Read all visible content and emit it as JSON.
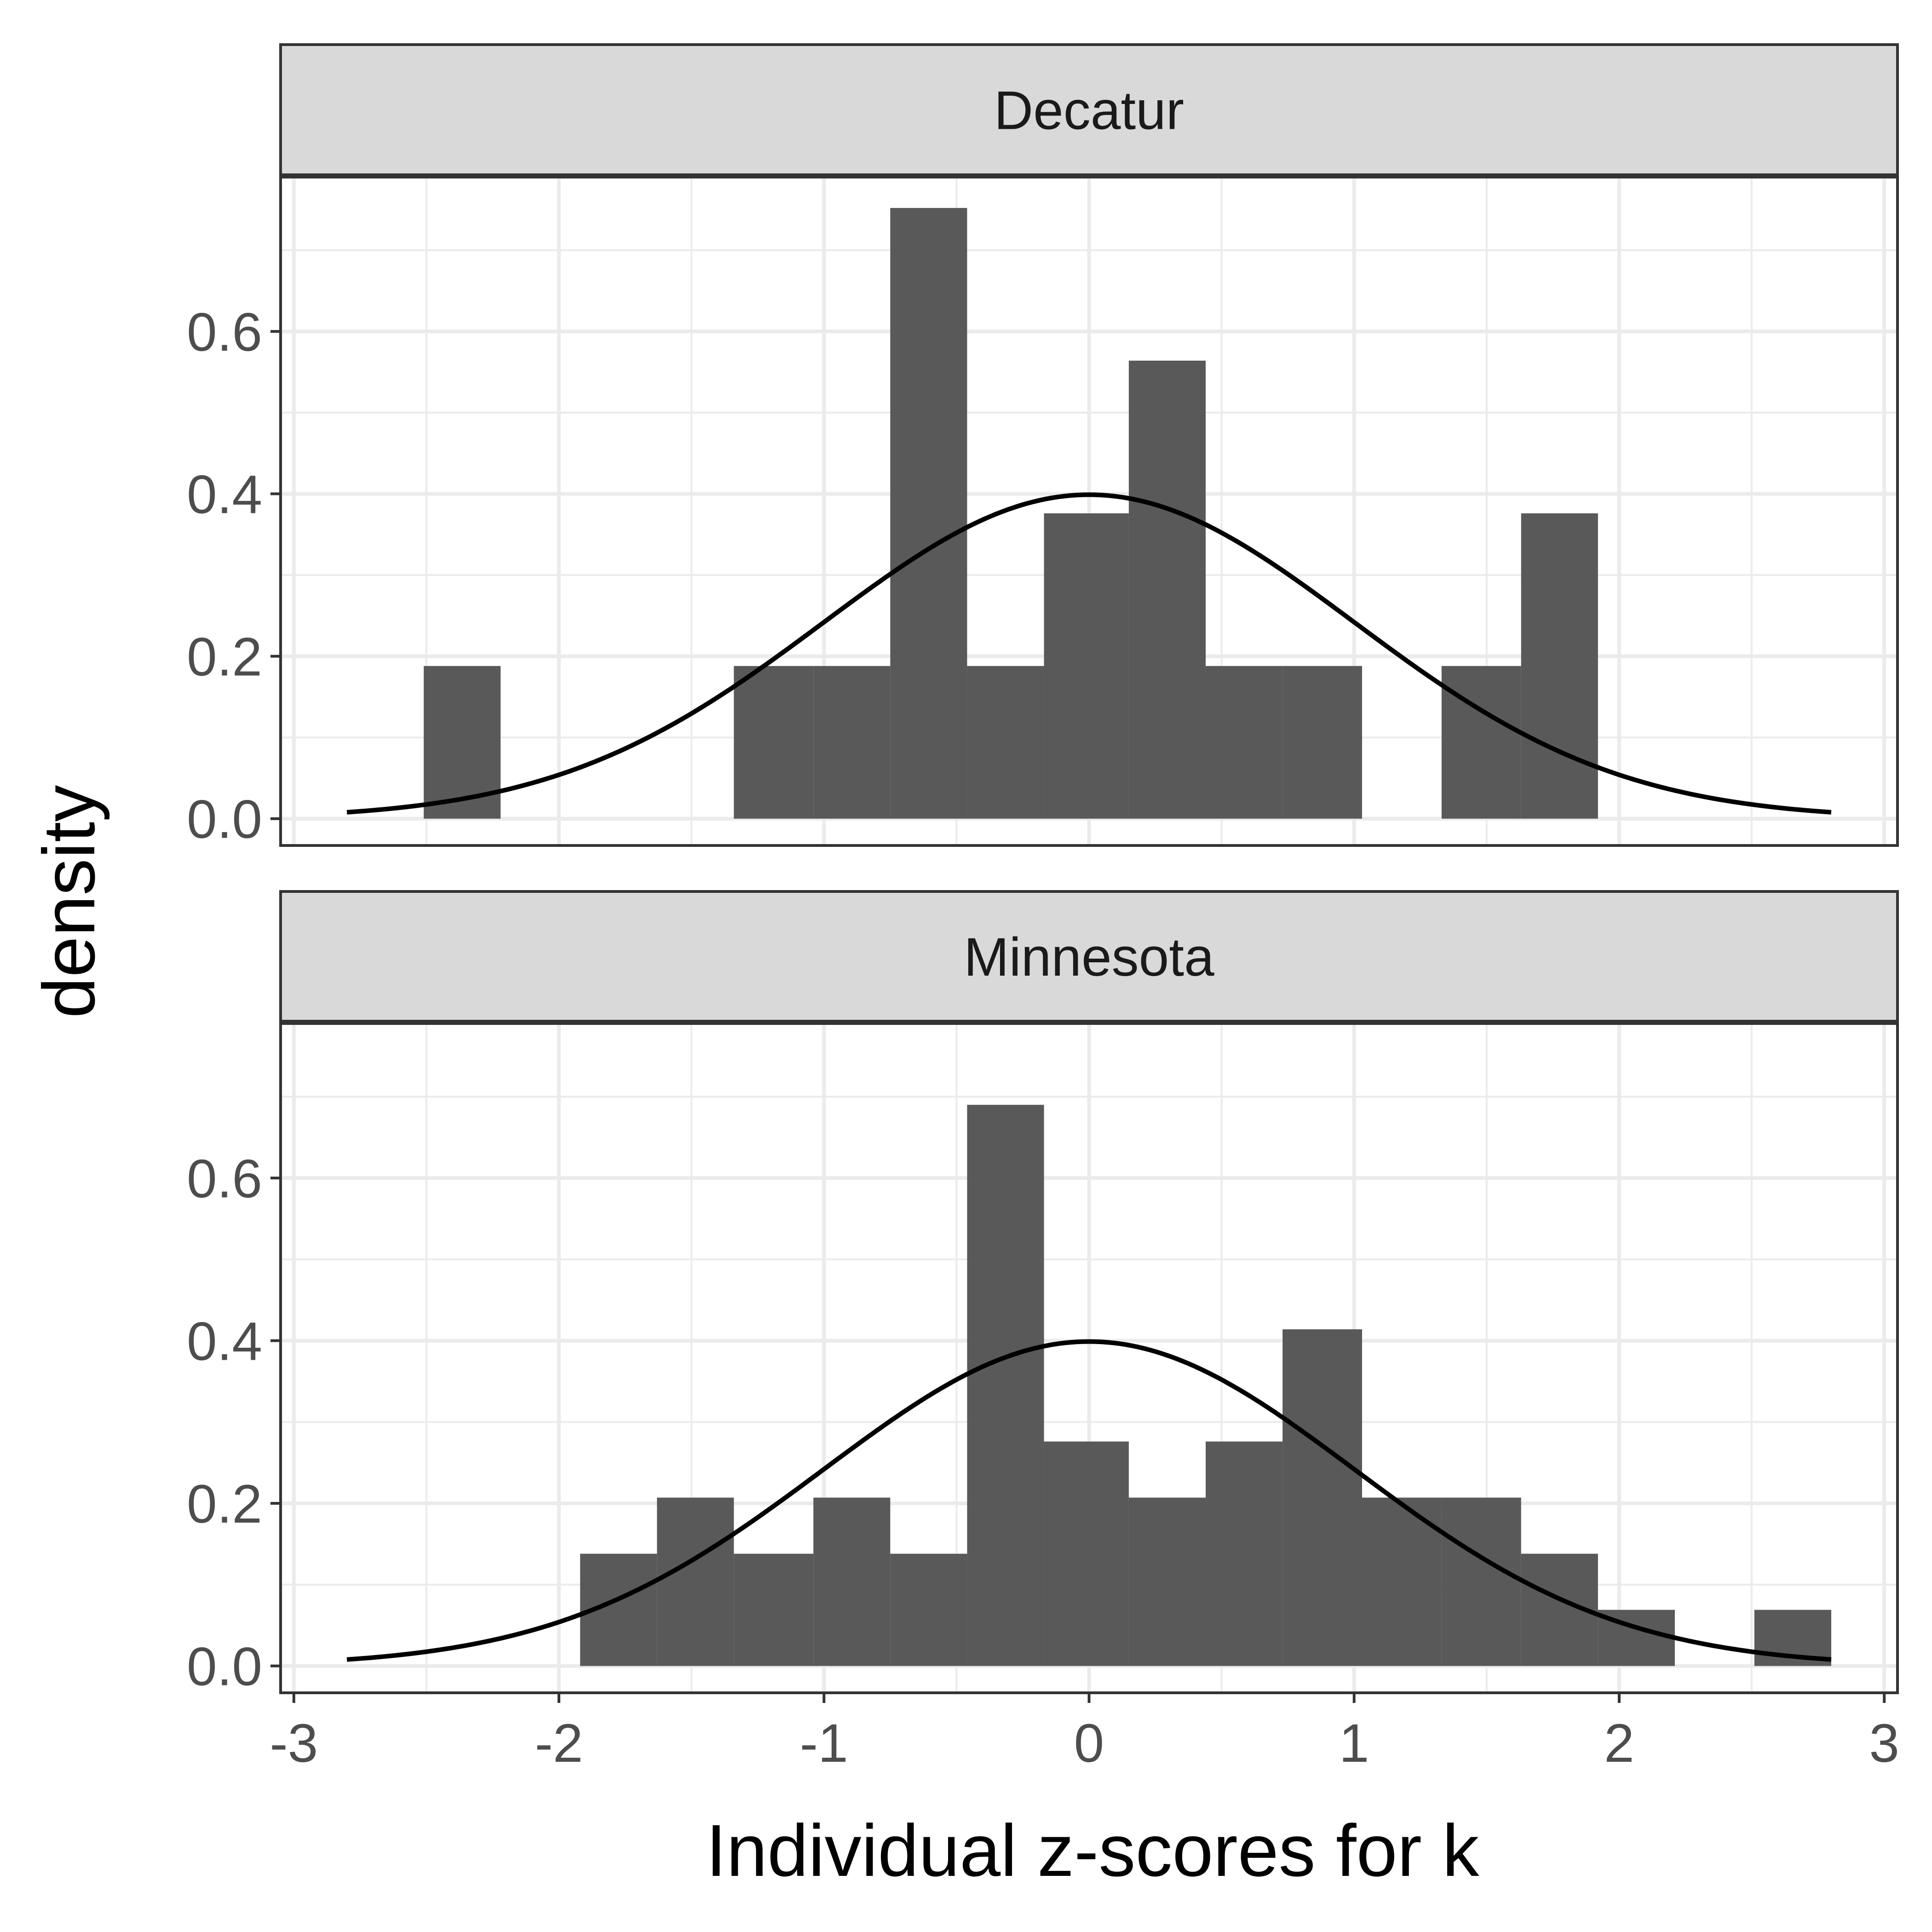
{
  "chart_data": {
    "type": "bar",
    "xlabel": "Individual z-scores for k",
    "ylabel": "density",
    "xlim": [
      -3.05,
      3.05
    ],
    "ylim": [
      -0.033,
      0.79
    ],
    "x_ticks": [
      -3,
      -2,
      -1,
      0,
      1,
      2,
      3
    ],
    "x_tick_labels": [
      "-3",
      "-2",
      "-1",
      "0",
      "1",
      "2",
      "3"
    ],
    "y_ticks": [
      0.0,
      0.2,
      0.4,
      0.6
    ],
    "y_tick_labels": [
      "0.0",
      "0.2",
      "0.4",
      "0.6"
    ],
    "grid": true,
    "overlay_curve": "standard normal density, x from -2.8 to 2.8",
    "colors": {
      "bars": "#595959",
      "curve": "#000000",
      "strip_fill": "#d9d9d9",
      "grid": "#ebebeb"
    },
    "panels": [
      {
        "strip_label": "Decatur",
        "bins": [
          {
            "x0": -2.51,
            "x1": -2.22,
            "density": 0.188
          },
          {
            "x0": -1.34,
            "x1": -1.04,
            "density": 0.188
          },
          {
            "x0": -1.04,
            "x1": -0.75,
            "density": 0.188
          },
          {
            "x0": -0.75,
            "x1": -0.46,
            "density": 0.752
          },
          {
            "x0": -0.46,
            "x1": -0.17,
            "density": 0.188
          },
          {
            "x0": -0.17,
            "x1": 0.15,
            "density": 0.376
          },
          {
            "x0": 0.15,
            "x1": 0.44,
            "density": 0.564
          },
          {
            "x0": 0.44,
            "x1": 0.73,
            "density": 0.188
          },
          {
            "x0": 0.73,
            "x1": 1.03,
            "density": 0.188
          },
          {
            "x0": 1.33,
            "x1": 1.63,
            "density": 0.188
          },
          {
            "x0": 1.63,
            "x1": 1.92,
            "density": 0.376
          }
        ]
      },
      {
        "strip_label": "Minnesota",
        "bins": [
          {
            "x0": -1.92,
            "x1": -1.63,
            "density": 0.138
          },
          {
            "x0": -1.63,
            "x1": -1.34,
            "density": 0.207
          },
          {
            "x0": -1.34,
            "x1": -1.04,
            "density": 0.138
          },
          {
            "x0": -1.04,
            "x1": -0.75,
            "density": 0.207
          },
          {
            "x0": -0.75,
            "x1": -0.46,
            "density": 0.138
          },
          {
            "x0": -0.46,
            "x1": -0.17,
            "density": 0.69
          },
          {
            "x0": -0.17,
            "x1": 0.15,
            "density": 0.276
          },
          {
            "x0": 0.15,
            "x1": 0.44,
            "density": 0.207
          },
          {
            "x0": 0.44,
            "x1": 0.73,
            "density": 0.276
          },
          {
            "x0": 0.73,
            "x1": 1.03,
            "density": 0.414
          },
          {
            "x0": 1.03,
            "x1": 1.33,
            "density": 0.207
          },
          {
            "x0": 1.33,
            "x1": 1.63,
            "density": 0.207
          },
          {
            "x0": 1.63,
            "x1": 1.92,
            "density": 0.138
          },
          {
            "x0": 1.92,
            "x1": 2.21,
            "density": 0.069
          },
          {
            "x0": 2.51,
            "x1": 2.8,
            "density": 0.069
          }
        ]
      }
    ]
  }
}
